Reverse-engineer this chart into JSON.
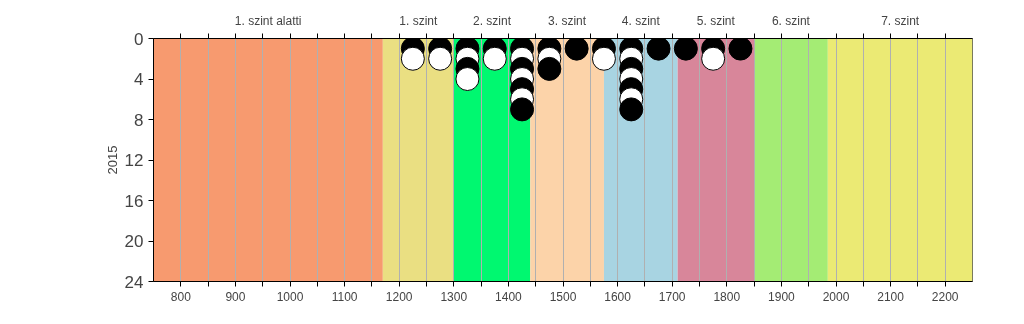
{
  "chart_data": {
    "type": "scatter",
    "ylabel": "2015",
    "xlim": [
      750,
      2250
    ],
    "ylim": [
      24,
      0
    ],
    "xticks": [
      800,
      {
        "value": 850,
        "label": null
      },
      900,
      {
        "value": 950,
        "label": null
      },
      1000,
      {
        "value": 1050,
        "label": null
      },
      1100,
      {
        "value": 1150,
        "label": null
      },
      1200,
      {
        "value": 1250,
        "label": null
      },
      1300,
      {
        "value": 1350,
        "label": null
      },
      1400,
      {
        "value": 1450,
        "label": null
      },
      1500,
      {
        "value": 1550,
        "label": null
      },
      1600,
      {
        "value": 1650,
        "label": null
      },
      1700,
      {
        "value": 1750,
        "label": null
      },
      1800,
      {
        "value": 1850,
        "label": null
      },
      1900,
      {
        "value": 1950,
        "label": null
      },
      2000,
      {
        "value": 2050,
        "label": null
      },
      2100,
      {
        "value": 2150,
        "label": null
      },
      2200
    ],
    "yticks": [
      0,
      4,
      8,
      12,
      16,
      20,
      24
    ],
    "grid": "x",
    "marker": "circle",
    "bands": [
      {
        "axis": "x",
        "from": 750,
        "to": 1170,
        "label": "1. szint alatti",
        "color": "#f79a6f"
      },
      {
        "axis": "x",
        "from": 1170,
        "to": 1300,
        "label": "1. szint",
        "color": "#eadf82"
      },
      {
        "axis": "x",
        "from": 1300,
        "to": 1440,
        "label": "2. szint",
        "color": "#00f870"
      },
      {
        "axis": "x",
        "from": 1440,
        "to": 1575,
        "label": "3. szint",
        "color": "#fcd3a9"
      },
      {
        "axis": "x",
        "from": 1575,
        "to": 1710,
        "label": "4. szint",
        "color": "#a8d4e2"
      },
      {
        "axis": "x",
        "from": 1710,
        "to": 1850,
        "label": "5. szint",
        "color": "#d8869a"
      },
      {
        "axis": "x",
        "from": 1850,
        "to": 1985,
        "label": "6. szint",
        "color": "#a4ec74"
      },
      {
        "axis": "x",
        "from": 1985,
        "to": 2250,
        "label": "7. szint",
        "color": "#ebea74"
      }
    ],
    "series": [
      {
        "color": "#000000",
        "x": [
          1225,
          1275,
          1325,
          1325,
          1375,
          1425,
          1425,
          1425,
          1425,
          1475,
          1475,
          1525,
          1575,
          1625,
          1625,
          1625,
          1625,
          1675,
          1725,
          1775,
          1825
        ],
        "values": [
          1,
          1,
          1,
          3,
          1,
          1,
          3,
          5,
          7,
          1,
          3,
          1,
          1,
          1,
          3,
          5,
          7,
          1,
          1,
          1,
          1
        ]
      },
      {
        "color": "#ffffff",
        "x": [
          1225,
          1275,
          1325,
          1325,
          1375,
          1425,
          1425,
          1425,
          1475,
          1575,
          1625,
          1625,
          1625,
          1775
        ],
        "values": [
          2,
          2,
          2,
          4,
          2,
          2,
          4,
          6,
          2,
          2,
          2,
          4,
          6,
          2
        ]
      }
    ]
  }
}
